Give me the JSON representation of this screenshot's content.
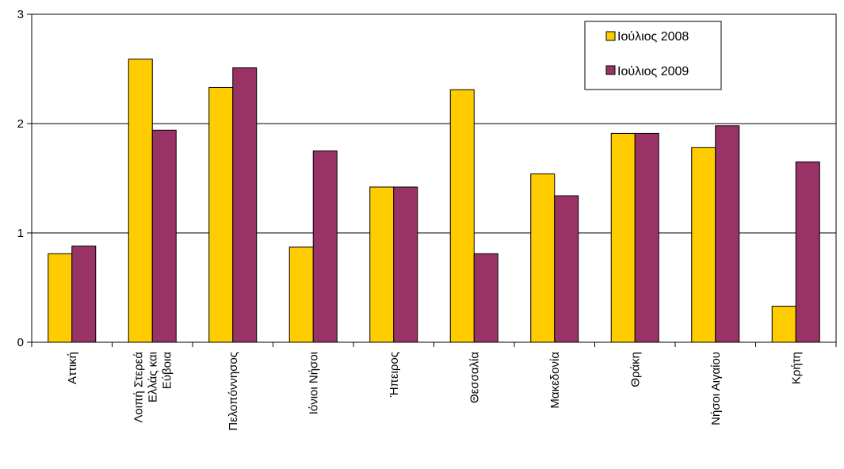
{
  "colors": {
    "series_2008": "#FFCC00",
    "series_2009": "#993366",
    "border": "#000000",
    "gridline": "#000000"
  },
  "chart_data": {
    "type": "bar",
    "title": "",
    "xlabel": "",
    "ylabel": "",
    "ylim": [
      0,
      3
    ],
    "yticks": [
      "0",
      "1",
      "2",
      "3"
    ],
    "grid": true,
    "legend_position": "top-right",
    "categories": [
      [
        "Αττική"
      ],
      [
        "Λοιπή Στερεά",
        "Ελλάς και",
        "Εύβοια"
      ],
      [
        "Πελοπόννησος"
      ],
      [
        "Ιόνιοι Νήσοι"
      ],
      [
        "Ήπειρος"
      ],
      [
        "Θεσσαλία"
      ],
      [
        "Μακεδονία"
      ],
      [
        "Θράκη"
      ],
      [
        "Νήσοι Αιγαίου"
      ],
      [
        "Κρήτη"
      ]
    ],
    "series": [
      {
        "name": "Ιούλιος 2008",
        "values": [
          0.81,
          2.59,
          2.33,
          0.87,
          1.42,
          2.31,
          1.54,
          1.91,
          1.78,
          0.33
        ]
      },
      {
        "name": "Ιούλιος 2009",
        "values": [
          0.88,
          1.94,
          2.51,
          1.75,
          1.42,
          0.81,
          1.34,
          1.91,
          1.98,
          1.65
        ]
      }
    ]
  }
}
